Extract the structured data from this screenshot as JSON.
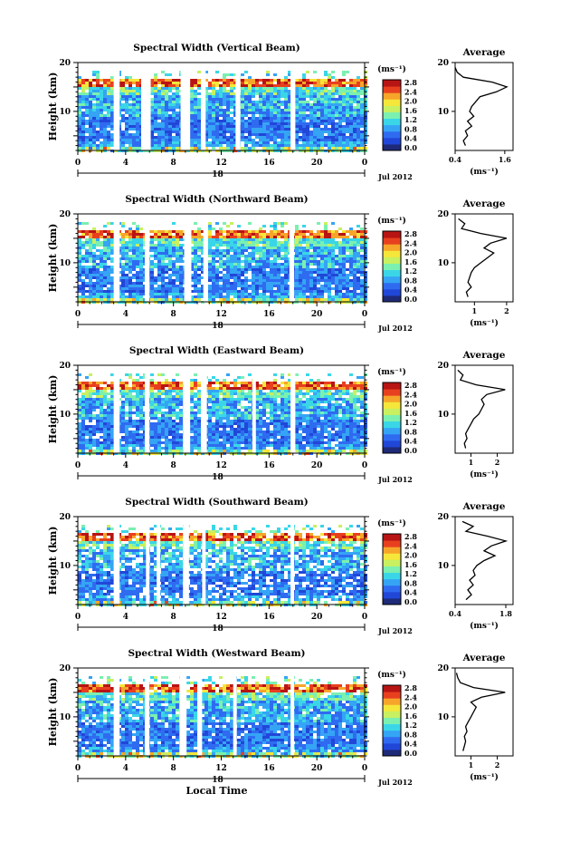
{
  "figure": {
    "xlabel": "Local Time",
    "ylabel": "Height (km)",
    "date_label": "Jul 2012",
    "colorbar_unit": "(ms⁻¹)",
    "colorbar_ticks": [
      "0.0",
      "0.4",
      "0.8",
      "1.2",
      "1.6",
      "2.0",
      "2.4",
      "2.8"
    ],
    "colormap": [
      "#1e2a78",
      "#2147d8",
      "#2f6bf0",
      "#35a4f5",
      "#3ad6e8",
      "#7bf0b0",
      "#c8f060",
      "#f5e63a",
      "#f7a52a",
      "#e8401f",
      "#b81414"
    ],
    "average_title": "Average",
    "average_unit": "(ms⁻¹)"
  },
  "chart_data": [
    {
      "type": "heatmap",
      "title": "Spectral Width (Vertical Beam)",
      "day_label": "18",
      "xticks": [
        "0",
        "4",
        "8",
        "12",
        "16",
        "20",
        "0"
      ],
      "x_range_hours": [
        0,
        24
      ],
      "yticks": [
        "10",
        "20"
      ],
      "y_range_km": [
        2,
        20
      ],
      "gaps_hours": [
        [
          3.0,
          3.5
        ],
        [
          5.3,
          6.1
        ],
        [
          8.6,
          9.4
        ],
        [
          10.3,
          10.7
        ],
        [
          13.2,
          13.6
        ],
        [
          17.8,
          18.2
        ]
      ],
      "profile": {
        "title": "Average",
        "xticks": [
          "0.4",
          "1.6"
        ],
        "xlim": [
          0.4,
          1.8
        ],
        "height_km": [
          3,
          4,
          5,
          6,
          7,
          8,
          9,
          10,
          11,
          12,
          13,
          14,
          15,
          16,
          17,
          18,
          19
        ],
        "width_ms": [
          0.65,
          0.6,
          0.7,
          0.65,
          0.8,
          0.7,
          0.85,
          0.75,
          0.8,
          0.9,
          1.0,
          1.4,
          1.65,
          1.3,
          0.6,
          0.45,
          0.4
        ]
      }
    },
    {
      "type": "heatmap",
      "title": "Spectral Width (Northward Beam)",
      "day_label": "18",
      "xticks": [
        "0",
        "4",
        "8",
        "12",
        "16",
        "20",
        "0"
      ],
      "x_range_hours": [
        0,
        24
      ],
      "yticks": [
        "10",
        "20"
      ],
      "y_range_km": [
        2,
        20
      ],
      "gaps_hours": [
        [
          3.0,
          3.5
        ],
        [
          5.6,
          6.0
        ],
        [
          8.9,
          9.5
        ],
        [
          10.5,
          10.9
        ],
        [
          17.7,
          18.1
        ]
      ],
      "profile": {
        "title": "Average",
        "xticks": [
          "1",
          "2"
        ],
        "xlim": [
          0.4,
          2.2
        ],
        "height_km": [
          3,
          4,
          5,
          6,
          7,
          8,
          9,
          10,
          11,
          12,
          13,
          14,
          15,
          16,
          17,
          18,
          19
        ],
        "width_ms": [
          0.8,
          0.75,
          0.9,
          0.8,
          0.85,
          0.9,
          1.0,
          1.2,
          1.4,
          1.6,
          1.3,
          1.5,
          2.0,
          1.2,
          0.6,
          0.7,
          0.5
        ]
      }
    },
    {
      "type": "heatmap",
      "title": "Spectral Width (Eastward Beam)",
      "day_label": "18",
      "xticks": [
        "0",
        "4",
        "8",
        "12",
        "16",
        "20",
        "0"
      ],
      "x_range_hours": [
        0,
        24
      ],
      "yticks": [
        "10",
        "20"
      ],
      "y_range_km": [
        2,
        20
      ],
      "gaps_hours": [
        [
          3.0,
          3.5
        ],
        [
          5.6,
          6.0
        ],
        [
          8.8,
          9.4
        ],
        [
          10.3,
          10.8
        ],
        [
          14.6,
          14.9
        ],
        [
          17.8,
          18.2
        ]
      ],
      "profile": {
        "title": "Average",
        "xticks": [
          "1",
          "2"
        ],
        "xlim": [
          0.4,
          2.6
        ],
        "height_km": [
          3,
          4,
          5,
          6,
          7,
          8,
          9,
          10,
          11,
          12,
          13,
          14,
          15,
          16,
          17,
          18,
          19
        ],
        "width_ms": [
          0.8,
          0.75,
          0.85,
          0.8,
          0.9,
          1.0,
          1.1,
          1.3,
          1.4,
          1.5,
          1.4,
          1.6,
          2.3,
          1.2,
          0.6,
          0.7,
          0.5
        ]
      }
    },
    {
      "type": "heatmap",
      "title": "Spectral Width (Southward Beam)",
      "day_label": "18",
      "xticks": [
        "0",
        "4",
        "8",
        "12",
        "16",
        "20",
        "0"
      ],
      "x_range_hours": [
        0,
        24
      ],
      "yticks": [
        "10",
        "20"
      ],
      "y_range_km": [
        2,
        20
      ],
      "gaps_hours": [
        [
          3.0,
          3.5
        ],
        [
          5.7,
          6.0
        ],
        [
          6.6,
          6.9
        ],
        [
          8.8,
          9.3
        ],
        [
          10.4,
          10.7
        ],
        [
          17.8,
          18.1
        ]
      ],
      "profile": {
        "title": "Average",
        "xticks": [
          "0.4",
          "1.8"
        ],
        "xlim": [
          0.4,
          2.0
        ],
        "height_km": [
          3,
          4,
          5,
          6,
          7,
          8,
          9,
          10,
          11,
          12,
          13,
          14,
          15,
          16,
          17,
          18,
          19
        ],
        "width_ms": [
          0.7,
          0.85,
          0.75,
          0.9,
          0.8,
          0.95,
          0.9,
          1.0,
          1.2,
          1.5,
          1.2,
          1.4,
          1.8,
          1.3,
          0.7,
          0.9,
          0.6
        ]
      }
    },
    {
      "type": "heatmap",
      "title": "Spectral Width (Westward Beam)",
      "day_label": "18",
      "xticks": [
        "0",
        "4",
        "8",
        "12",
        "16",
        "20",
        "0"
      ],
      "x_range_hours": [
        0,
        24
      ],
      "yticks": [
        "10",
        "20"
      ],
      "y_range_km": [
        2,
        20
      ],
      "gaps_hours": [
        [
          3.0,
          3.5
        ],
        [
          5.6,
          6.0
        ],
        [
          8.5,
          9.1
        ],
        [
          10.0,
          10.4
        ],
        [
          13.0,
          13.3
        ],
        [
          17.8,
          18.1
        ]
      ],
      "profile": {
        "title": "Average",
        "xticks": [
          "1",
          "2"
        ],
        "xlim": [
          0.4,
          2.6
        ],
        "height_km": [
          3,
          4,
          5,
          6,
          7,
          8,
          9,
          10,
          11,
          12,
          13,
          14,
          15,
          16,
          17,
          18,
          19
        ],
        "width_ms": [
          0.7,
          0.75,
          0.8,
          0.75,
          0.85,
          0.8,
          0.9,
          1.0,
          1.1,
          1.2,
          1.0,
          1.4,
          2.3,
          1.1,
          0.6,
          0.5,
          0.45
        ]
      }
    }
  ]
}
